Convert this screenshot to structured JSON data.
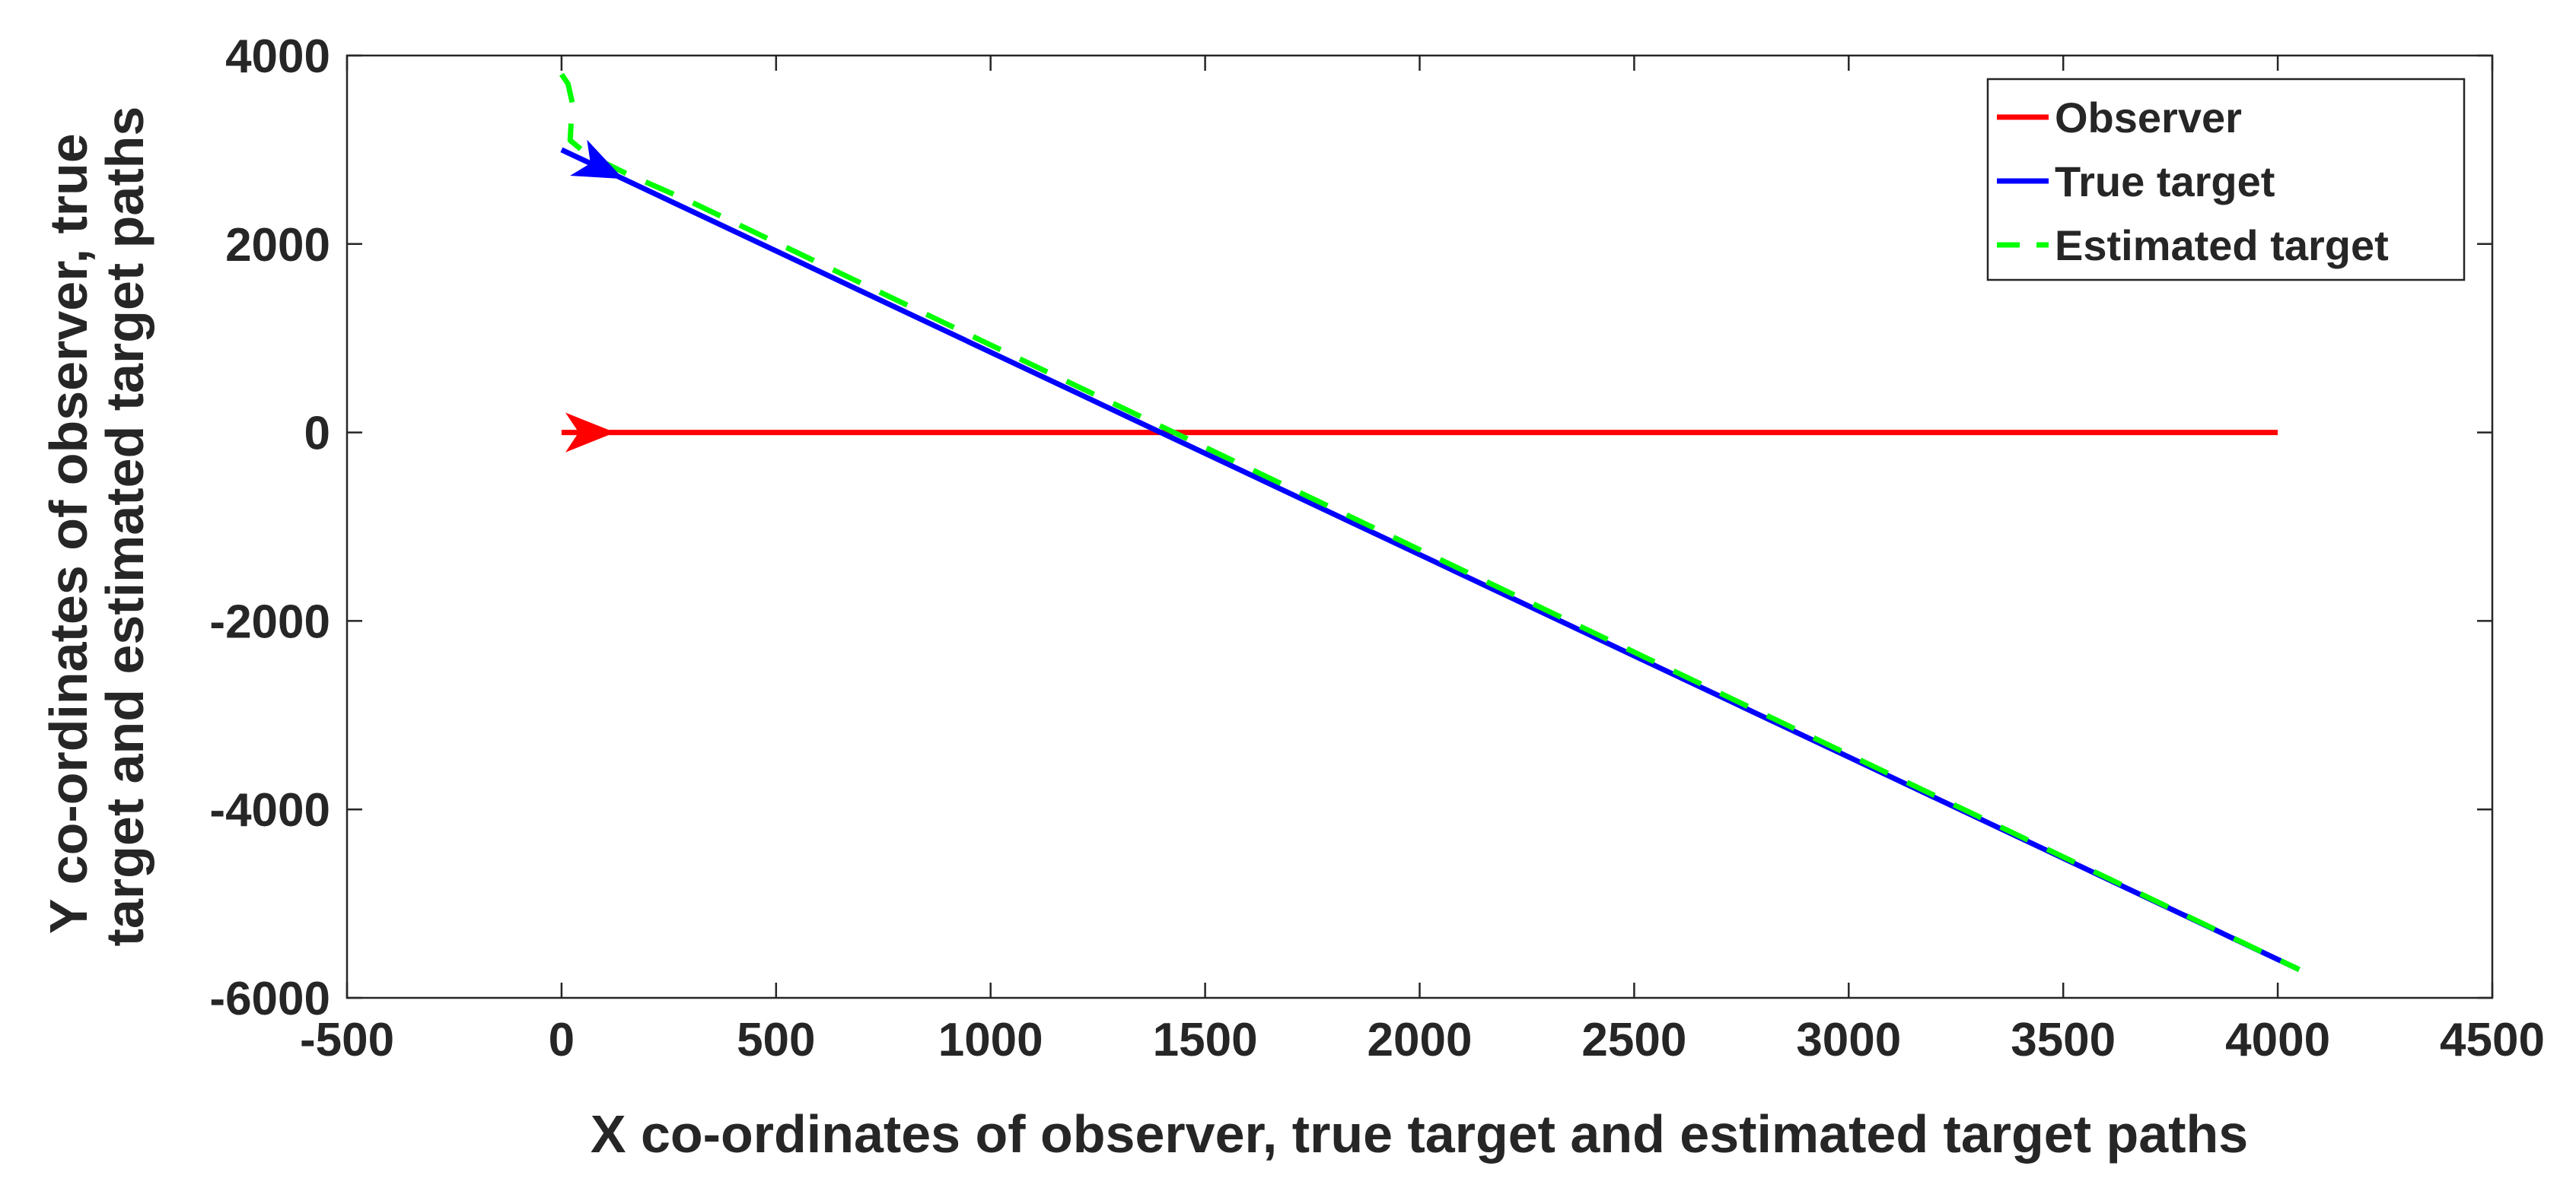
{
  "chart_data": {
    "type": "line",
    "title": "",
    "xlabel": "X co-ordinates of observer, true target and estimated target paths",
    "ylabel_lines": [
      "Y co-ordinates of observer, true",
      "target and estimated target paths"
    ],
    "xlim": [
      -500,
      4500
    ],
    "ylim": [
      -6000,
      4000
    ],
    "xticks": [
      -500,
      0,
      500,
      1000,
      1500,
      2000,
      2500,
      3000,
      3500,
      4000,
      4500
    ],
    "yticks": [
      -6000,
      -4000,
      -2000,
      0,
      2000,
      4000
    ],
    "grid": false,
    "legend_position": "top-right",
    "series": [
      {
        "name": "Observer",
        "color": "#ff0000",
        "line_style": "solid",
        "x": [
          0,
          4000
        ],
        "y": [
          0,
          0
        ],
        "direction_arrow_at": [
          120,
          0
        ]
      },
      {
        "name": "True target",
        "color": "#0000ff",
        "line_style": "solid",
        "x": [
          0,
          4050
        ],
        "y": [
          3000,
          -5700
        ],
        "direction_arrow_at": [
          140,
          2700
        ]
      },
      {
        "name": "Estimated target",
        "color": "#00ff00",
        "line_style": "dashed",
        "x": [
          0,
          15,
          25,
          20,
          60,
          150,
          300,
          4050
        ],
        "y": [
          3800,
          3700,
          3500,
          3100,
          2950,
          2750,
          2450,
          -5700
        ]
      }
    ]
  }
}
